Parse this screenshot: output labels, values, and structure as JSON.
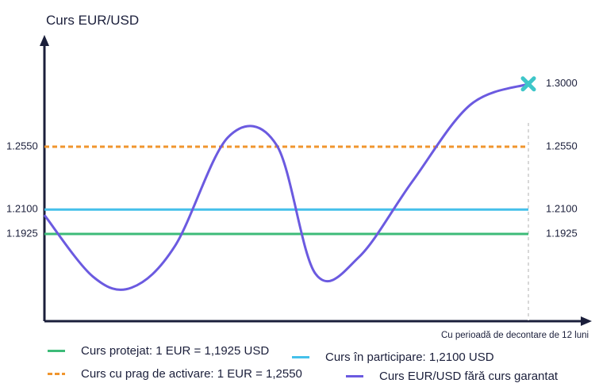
{
  "chart_data": {
    "type": "line",
    "ylabel": "Curs EUR/USD",
    "xlabel": "Cu perioadă de decontare de 12 luni",
    "y_tick_labels_left": [
      "1.2550",
      "1.2100",
      "1.1925"
    ],
    "y_tick_labels_right": [
      "1.3000",
      "1.2550",
      "1.2100",
      "1.1925"
    ],
    "reference_lines": [
      {
        "name": "Curs protejat: 1 EUR = 1,1925 USD",
        "value": 1.1925,
        "color": "#3dbb78",
        "style": "solid"
      },
      {
        "name": "Curs în participare: 1,2100 USD",
        "value": 1.21,
        "color": "#45c0ea",
        "style": "solid"
      },
      {
        "name": "Curs cu prag de activare: 1 EUR = 1,2550",
        "value": 1.255,
        "color": "#f0952e",
        "style": "dashed"
      }
    ],
    "series": [
      {
        "name": "Curs EUR/USD fără curs garantat",
        "color": "#6b5ae0",
        "x": [
          0,
          0.1,
          0.18,
          0.27,
          0.38,
          0.48,
          0.56,
          0.65,
          0.76,
          0.88,
          1.0
        ],
        "y": [
          1.206,
          1.162,
          1.154,
          1.184,
          1.262,
          1.256,
          1.164,
          1.176,
          1.23,
          1.285,
          1.3
        ]
      }
    ],
    "end_marker": {
      "value": 1.3,
      "color": "#3ec6c9"
    },
    "legend": [
      {
        "label": "Curs protejat: 1 EUR = 1,1925 USD",
        "color": "#3dbb78",
        "style": "solid"
      },
      {
        "label": "Curs în participare: 1,2100 USD",
        "color": "#45c0ea",
        "style": "solid"
      },
      {
        "label": "Curs cu prag de activare: 1 EUR = 1,2550",
        "color": "#f0952e",
        "style": "dashed"
      },
      {
        "label": "Curs EUR/USD fără curs garantat",
        "color": "#6b5ae0",
        "style": "solid"
      }
    ]
  }
}
